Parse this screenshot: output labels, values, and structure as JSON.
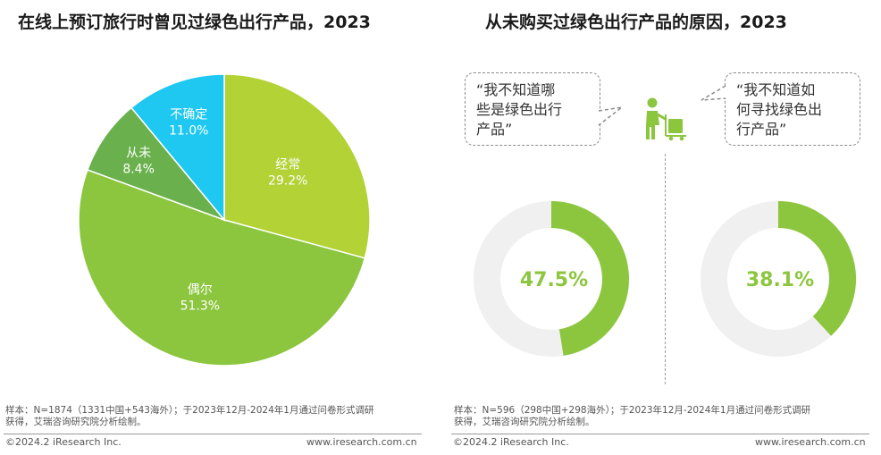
{
  "chart_data": [
    {
      "type": "pie",
      "title": "在线上预订旅行时曾见过绿色出行产品，2023",
      "slices": [
        {
          "name": "经常",
          "value": 29.2,
          "label": "29.2%",
          "color": "#b2d235"
        },
        {
          "name": "偶尔",
          "value": 51.3,
          "label": "51.3%",
          "color": "#8cc63f"
        },
        {
          "name": "从未",
          "value": 8.4,
          "label": "8.4%",
          "color": "#6ab04c"
        },
        {
          "name": "不确定",
          "value": 11.0,
          "label": "11.0%",
          "color": "#1ec8f0"
        }
      ],
      "note_lines": [
        "样本：N=1874（1331中国+543海外）；于2023年12月-2024年1月通过问卷形式调研",
        "获得，艾瑞咨询研究院分析绘制。"
      ],
      "copyright": "©2024.2 iResearch Inc.",
      "website": "www.iresearch.com.cn"
    },
    {
      "type": "pie",
      "title": "从未购买过绿色出行产品的原因，2023",
      "items": [
        {
          "quote_lines": [
            "“我不知道哪",
            "些是绿色出行",
            "产品”"
          ],
          "value": 47.5,
          "label": "47.5%"
        },
        {
          "quote_lines": [
            "“我不知道如",
            "何寻找绿色出",
            "行产品”"
          ],
          "value": 38.1,
          "label": "38.1%"
        }
      ],
      "note_lines": [
        "样本：N=596（298中国+298海外）；于2023年12月-2024年1月通过问卷形式调研",
        "获得，艾瑞咨询研究院分析绘制。"
      ],
      "copyright": "©2024.2 iResearch Inc.",
      "website": "www.iresearch.com.cn"
    }
  ],
  "colors": {
    "accent": "#8cc63f",
    "donut_bg": "#f0f0f0",
    "icon": "#8cc63f"
  },
  "icons": {
    "person": "person-cart-icon"
  }
}
